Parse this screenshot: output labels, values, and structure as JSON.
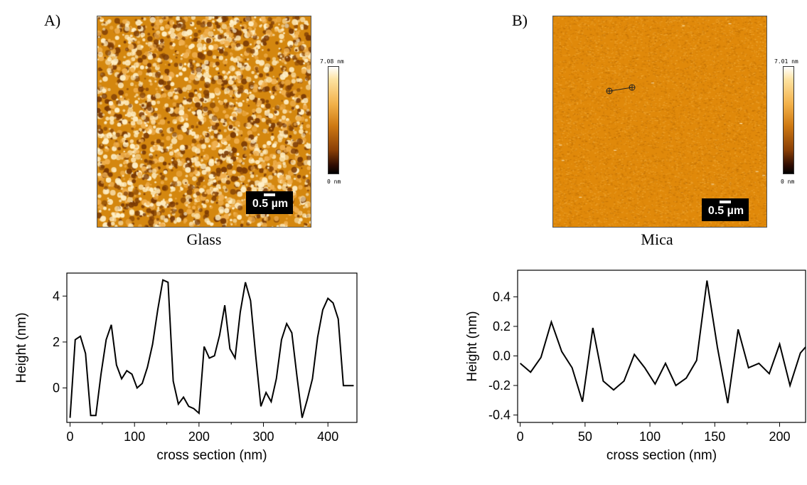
{
  "panels": [
    {
      "label": "A)",
      "caption": "Glass",
      "scale_bar": "0.5 µm",
      "colorbar_max": "7.08 nm",
      "colorbar_min": "0 nm",
      "image_colors": {
        "base": "#d4870f",
        "light": "#fff0c8",
        "dark": "#7a3a05"
      }
    },
    {
      "label": "B)",
      "caption": "Mica",
      "scale_bar": "0.5 µm",
      "colorbar_max": "7.01 nm",
      "colorbar_min": "0 nm",
      "image_colors": {
        "base": "#e0890a",
        "light": "#f4b040",
        "dark": "#b86a05"
      }
    }
  ],
  "chart_data": [
    {
      "type": "line",
      "xlabel": "cross section (nm)",
      "ylabel": "Height (nm)",
      "xlim": [
        -5,
        445
      ],
      "ylim": [
        -1.5,
        5.0
      ],
      "xticks": [
        "0",
        "100",
        "200",
        "300",
        "400"
      ],
      "xtick_values": [
        0,
        100,
        200,
        300,
        400
      ],
      "yticks": [
        "0",
        "2",
        "4"
      ],
      "ytick_values": [
        0,
        2,
        4
      ],
      "grid": false,
      "x": [
        0,
        8,
        16,
        24,
        32,
        40,
        48,
        56,
        64,
        72,
        80,
        88,
        96,
        104,
        112,
        120,
        128,
        136,
        144,
        152,
        160,
        168,
        176,
        184,
        192,
        200,
        208,
        216,
        224,
        232,
        240,
        248,
        256,
        264,
        272,
        280,
        288,
        296,
        304,
        312,
        320,
        328,
        336,
        344,
        352,
        360,
        368,
        376,
        384,
        392,
        400,
        408,
        416,
        424,
        432,
        440
      ],
      "y": [
        -1.3,
        2.1,
        2.25,
        1.5,
        -1.2,
        -1.2,
        0.6,
        2.1,
        2.75,
        1.0,
        0.4,
        0.75,
        0.6,
        0.0,
        0.2,
        0.9,
        1.9,
        3.4,
        4.7,
        4.6,
        0.3,
        -0.7,
        -0.4,
        -0.8,
        -0.9,
        -1.1,
        1.8,
        1.3,
        1.4,
        2.3,
        3.6,
        1.7,
        1.3,
        3.3,
        4.6,
        3.8,
        1.4,
        -0.8,
        -0.2,
        -0.6,
        0.4,
        2.1,
        2.8,
        2.4,
        0.5,
        -1.3,
        -0.5,
        0.4,
        2.2,
        3.4,
        3.9,
        3.7,
        3.0,
        0.1,
        0.1,
        0.1
      ]
    },
    {
      "type": "line",
      "xlabel": "cross section (nm)",
      "ylabel": "Height (nm)",
      "xlim": [
        -2,
        220
      ],
      "ylim": [
        -0.45,
        0.58
      ],
      "xticks": [
        "0",
        "50",
        "100",
        "150",
        "200"
      ],
      "xtick_values": [
        0,
        50,
        100,
        150,
        200
      ],
      "yticks": [
        "-0.4",
        "-0.2",
        "0.0",
        "0.2",
        "0.4"
      ],
      "ytick_values": [
        -0.4,
        -0.2,
        0.0,
        0.2,
        0.4
      ],
      "grid": false,
      "x": [
        0,
        8,
        16,
        24,
        32,
        40,
        48,
        56,
        64,
        72,
        80,
        88,
        96,
        104,
        112,
        120,
        128,
        136,
        144,
        152,
        160,
        168,
        176,
        184,
        192,
        200,
        208,
        216,
        220
      ],
      "y": [
        -0.05,
        -0.11,
        -0.01,
        0.23,
        0.03,
        -0.08,
        -0.31,
        0.19,
        -0.17,
        -0.23,
        -0.17,
        0.01,
        -0.08,
        -0.19,
        -0.05,
        -0.2,
        -0.15,
        -0.03,
        0.51,
        0.06,
        -0.32,
        0.18,
        -0.08,
        -0.05,
        -0.12,
        0.08,
        -0.2,
        0.02,
        0.06
      ]
    }
  ]
}
